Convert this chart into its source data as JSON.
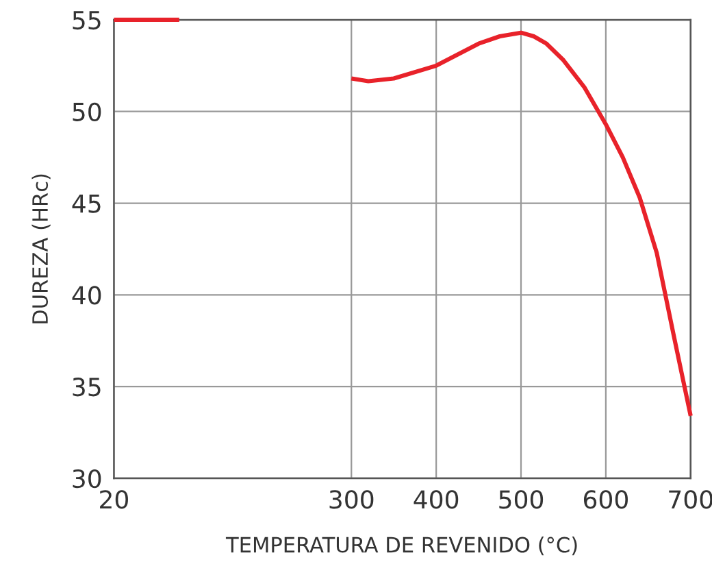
{
  "chart_data": {
    "type": "line",
    "xlabel": "TEMPERATURA DE REVENIDO (°C)",
    "ylabel": "DUREZA (HRc)",
    "xlim": [
      20,
      700
    ],
    "xticks": [
      20,
      300,
      400,
      500,
      600,
      700
    ],
    "ylim": [
      30,
      55
    ],
    "yticks": [
      30,
      35,
      40,
      45,
      50,
      55
    ],
    "grid": true,
    "series": [
      {
        "color": "#e8222a",
        "x": [
          20,
          97
        ],
        "values": [
          55,
          55
        ]
      },
      {
        "color": "#e8222a",
        "x": [
          300,
          320,
          350,
          400,
          425,
          450,
          475,
          500,
          515,
          530,
          550,
          575,
          600,
          620,
          640,
          660,
          680,
          700
        ],
        "values": [
          51.8,
          51.65,
          51.8,
          52.5,
          53.1,
          53.7,
          54.1,
          54.3,
          54.1,
          53.7,
          52.8,
          51.3,
          49.3,
          47.5,
          45.3,
          42.3,
          37.8,
          33.4
        ]
      }
    ]
  }
}
